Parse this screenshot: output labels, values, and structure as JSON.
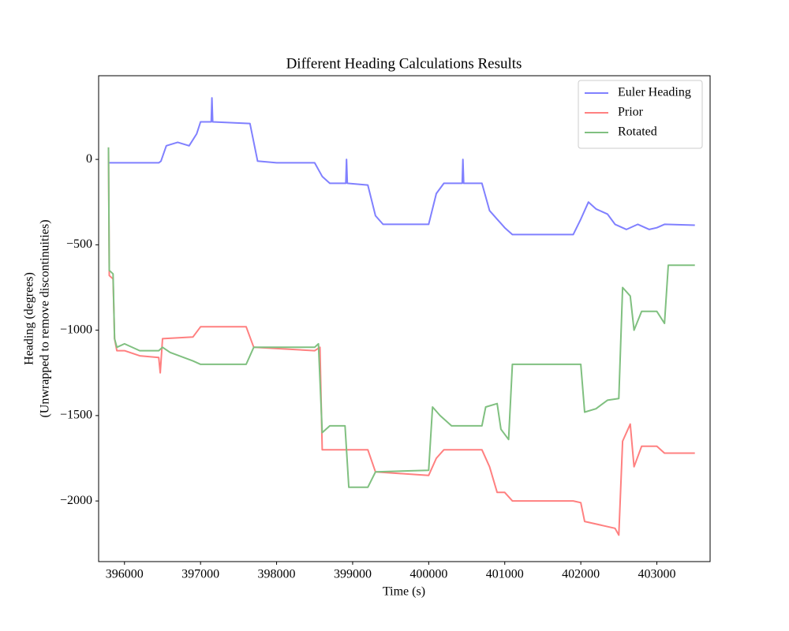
{
  "chart_data": {
    "type": "line",
    "title": "Different Heading Calculations Results",
    "xlabel": "Time (s)",
    "ylabel": [
      "Heading (degrees)",
      "(Unwrapped to remove discontinuities)"
    ],
    "xlim": [
      395660,
      403700
    ],
    "ylim": [
      -2355,
      490
    ],
    "xticks": [
      396000,
      397000,
      398000,
      399000,
      400000,
      401000,
      402000,
      403000
    ],
    "yticks": [
      0,
      {
        "value": -500,
        "label": "−500"
      },
      {
        "value": -1000,
        "label": "−1000"
      },
      {
        "value": -1500,
        "label": "−1500"
      },
      {
        "value": -2000,
        "label": "−2000"
      }
    ],
    "legend": "upper right",
    "series": [
      {
        "name": "Euler Heading",
        "color": "#8080ff",
        "x": [
          395800,
          396450,
          396480,
          396550,
          396700,
          396850,
          396950,
          397000,
          397140,
          397150,
          397160,
          397650,
          397750,
          398000,
          398500,
          398600,
          398700,
          398910,
          398920,
          398930,
          399200,
          399300,
          399400,
          400000,
          400100,
          400200,
          400440,
          400450,
          400460,
          400700,
          400800,
          400900,
          401000,
          401100,
          401900,
          402000,
          402100,
          402200,
          402350,
          402450,
          402600,
          402750,
          402900,
          403000,
          403100,
          403500
        ],
        "values": [
          -20,
          -20,
          -10,
          80,
          100,
          80,
          150,
          220,
          220,
          360,
          220,
          210,
          -10,
          -20,
          -20,
          -100,
          -140,
          -140,
          0,
          -140,
          -150,
          -330,
          -380,
          -380,
          -200,
          -140,
          -140,
          0,
          -140,
          -140,
          -300,
          -350,
          -400,
          -440,
          -440,
          -350,
          -250,
          -290,
          -320,
          -380,
          -410,
          -380,
          -410,
          -400,
          -380,
          -385
        ]
      },
      {
        "name": "Prior",
        "color": "#ff8080",
        "x": [
          395790,
          395800,
          395850,
          395870,
          395900,
          396000,
          396200,
          396450,
          396470,
          396500,
          396900,
          397000,
          397600,
          397700,
          398500,
          398570,
          398600,
          399200,
          399300,
          400000,
          400100,
          400200,
          400700,
          400800,
          400900,
          401000,
          401100,
          401900,
          402000,
          402050,
          402450,
          402500,
          402550,
          402650,
          402700,
          402800,
          403000,
          403100,
          403500
        ],
        "values": [
          70,
          -680,
          -700,
          -1050,
          -1120,
          -1120,
          -1150,
          -1160,
          -1250,
          -1050,
          -1040,
          -980,
          -980,
          -1100,
          -1120,
          -1100,
          -1700,
          -1700,
          -1830,
          -1850,
          -1750,
          -1700,
          -1700,
          -1800,
          -1950,
          -1950,
          -2000,
          -2000,
          -2010,
          -2120,
          -2160,
          -2200,
          -1650,
          -1550,
          -1800,
          -1680,
          -1680,
          -1720,
          -1720
        ]
      },
      {
        "name": "Rotated",
        "color": "#80c080",
        "x": [
          395790,
          395800,
          395850,
          395870,
          395900,
          396000,
          396200,
          396450,
          396500,
          396600,
          396900,
          397000,
          397600,
          397700,
          398500,
          398550,
          398600,
          398700,
          398900,
          398950,
          399200,
          399300,
          400000,
          400050,
          400150,
          400300,
          400700,
          400750,
          400900,
          400950,
          401050,
          401100,
          402000,
          402050,
          402200,
          402350,
          402500,
          402550,
          402650,
          402700,
          402800,
          403000,
          403100,
          403150,
          403500
        ],
        "values": [
          70,
          -650,
          -670,
          -1050,
          -1100,
          -1080,
          -1120,
          -1120,
          -1100,
          -1130,
          -1180,
          -1200,
          -1200,
          -1100,
          -1100,
          -1080,
          -1600,
          -1560,
          -1560,
          -1920,
          -1920,
          -1830,
          -1820,
          -1450,
          -1500,
          -1560,
          -1560,
          -1450,
          -1430,
          -1580,
          -1640,
          -1200,
          -1200,
          -1480,
          -1460,
          -1410,
          -1400,
          -750,
          -800,
          -1000,
          -890,
          -890,
          -960,
          -620,
          -620
        ]
      }
    ]
  }
}
